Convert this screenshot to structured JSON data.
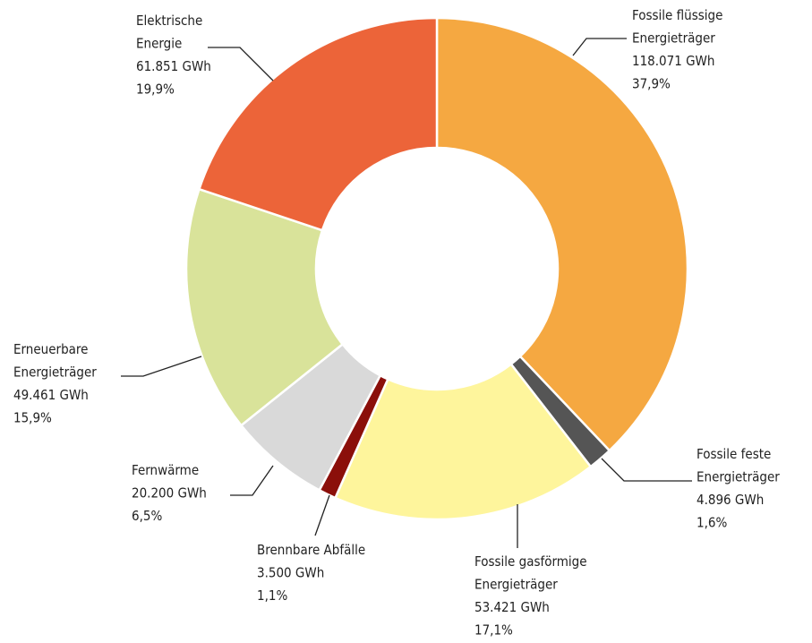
{
  "chart_data": {
    "type": "donut",
    "categories": [
      [
        "Fossile flüssige",
        "Energieträger"
      ],
      [
        "Fossile feste",
        "Energieträger"
      ],
      [
        "Fossile gasförmige",
        "Energieträger"
      ],
      [
        "Brennbare Abfälle"
      ],
      [
        "Fernwärme"
      ],
      [
        "Erneuerbare",
        "Energieträger"
      ],
      [
        "Elektrische",
        "Energie"
      ]
    ],
    "values": [
      118071,
      4896,
      53421,
      3500,
      20200,
      49461,
      61851
    ],
    "value_labels": [
      "118.071 GWh",
      "4.896 GWh",
      "53.421 GWh",
      "3.500 GWh",
      "20.200 GWh",
      "49.461 GWh",
      "61.851 GWh"
    ],
    "percents": [
      37.9,
      1.6,
      17.1,
      1.1,
      6.5,
      15.9,
      19.9
    ],
    "percent_labels": [
      "37,9%",
      "1,6%",
      "17,1%",
      "1,1%",
      "6,5%",
      "15,9%",
      "19,9%"
    ],
    "colors": [
      "#f5a841",
      "#555555",
      "#fef59c",
      "#8b0f0a",
      "#d9d9d9",
      "#d9e39a",
      "#ec6439"
    ]
  }
}
